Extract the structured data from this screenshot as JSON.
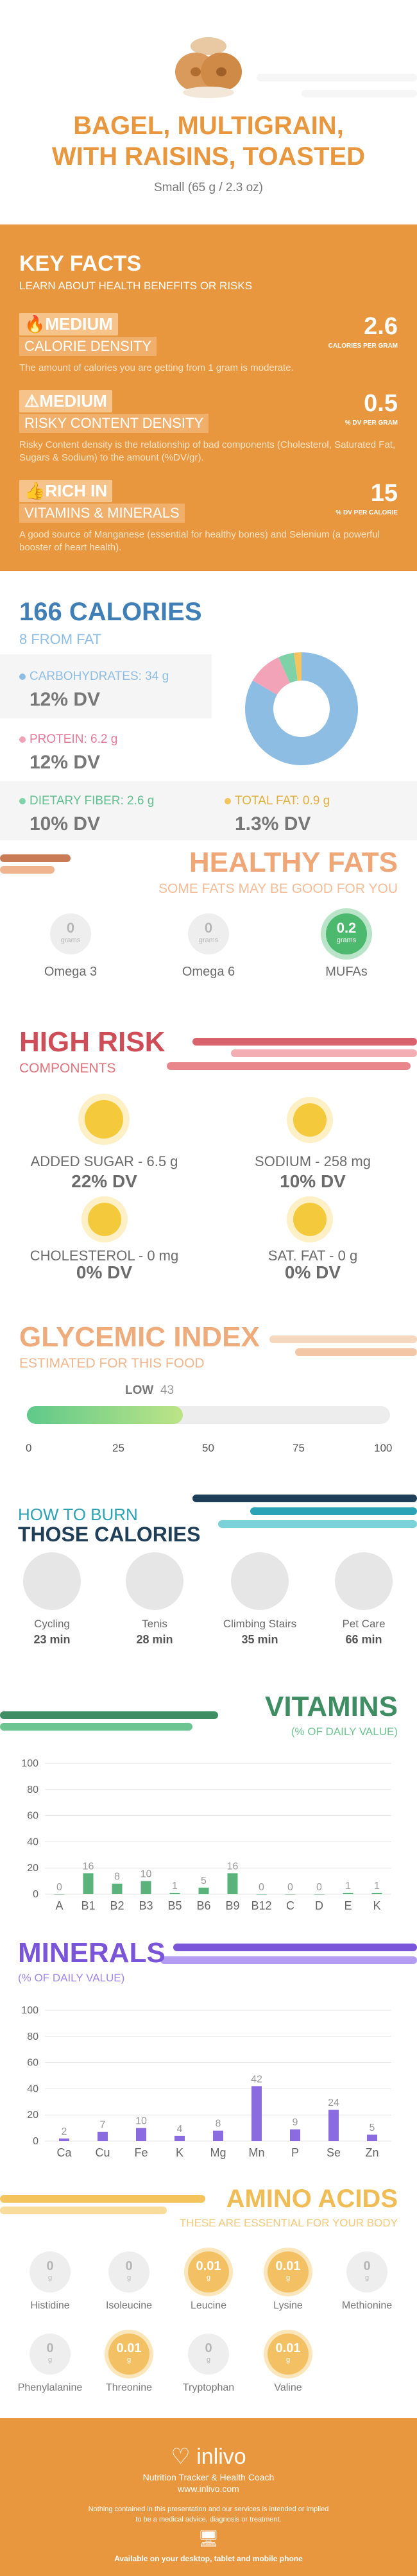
{
  "header": {
    "title_line1": "BAGEL, MULTIGRAIN,",
    "title_line2": "WITH RAISINS, TOASTED",
    "serving": "Small (65 g / 2.3 oz)"
  },
  "key_facts": {
    "title": "KEY FACTS",
    "subtitle": "LEARN ABOUT HEALTH BENEFITS OR RISKS",
    "items": [
      {
        "level": "MEDIUM",
        "label": "CALORIE DENSITY",
        "value": "2.6",
        "unit": "CALORIES PER GRAM",
        "desc": "The amount of calories you are getting from 1 gram is moderate."
      },
      {
        "level": "MEDIUM",
        "label": "RISKY CONTENT DENSITY",
        "value": "0.5",
        "unit": "% DV PER GRAM",
        "desc": "Risky Content density is the relationship of bad components (Cholesterol, Saturated Fat, Sugars & Sodium) to the amount (%DV/gr)."
      },
      {
        "level": "RICH IN",
        "label": "VITAMINS & MINERALS",
        "value": "15",
        "unit": "% DV PER CALORIE",
        "desc": "A good source of Manganese (essential for healthy bones) and Selenium (a powerful booster of heart health)."
      }
    ]
  },
  "calories": {
    "title": "166 CALORIES",
    "from_fat": "8 FROM FAT",
    "carbs": {
      "label": "CARBOHYDRATES: 34 g",
      "dv": "12% DV",
      "color": "#8dbde3"
    },
    "protein": {
      "label": "PROTEIN: 6.2 g",
      "dv": "12% DV",
      "color": "#f2a3b8"
    },
    "fiber": {
      "label": "DIETARY FIBER: 2.6 g",
      "dv": "10% DV",
      "color": "#7fd1a7"
    },
    "fat": {
      "label": "TOTAL FAT: 0.9 g",
      "dv": "1.3% DV",
      "color": "#f5c45e"
    }
  },
  "healthy_fats": {
    "title": "HEALTHY FATS",
    "subtitle": "SOME FATS MAY BE GOOD FOR YOU",
    "items": [
      {
        "value": "0",
        "unit": "grams",
        "label": "Omega 3"
      },
      {
        "value": "0",
        "unit": "grams",
        "label": "Omega 6"
      },
      {
        "value": "0.2",
        "unit": "grams",
        "label": "MUFAs"
      }
    ]
  },
  "high_risk": {
    "title": "HIGH RISK",
    "subtitle": "COMPONENTS",
    "items": [
      {
        "label": "ADDED SUGAR - 6.5 g",
        "dv": "22% DV"
      },
      {
        "label": "SODIUM - 258 mg",
        "dv": "10% DV"
      },
      {
        "label": "CHOLESTEROL - 0 mg",
        "dv": "0% DV"
      },
      {
        "label": "SAT. FAT - 0 g",
        "dv": "0% DV"
      }
    ]
  },
  "glycemic": {
    "title": "GLYCEMIC INDEX",
    "subtitle": "ESTIMATED FOR THIS FOOD",
    "level": "LOW",
    "value": 43,
    "value_text": "43",
    "ticks": [
      "0",
      "25",
      "50",
      "75",
      "100"
    ]
  },
  "burn": {
    "title1": "HOW TO BURN",
    "title2": "THOSE CALORIES",
    "items": [
      {
        "label": "Cycling",
        "time": "23 min"
      },
      {
        "label": "Tenis",
        "time": "28 min"
      },
      {
        "label": "Climbing Stairs",
        "time": "35 min"
      },
      {
        "label": "Pet Care",
        "time": "66 min"
      }
    ]
  },
  "vitamins": {
    "title": "VITAMINS",
    "subtitle": "(% OF DAILY VALUE)",
    "color": "#5bb37c"
  },
  "minerals": {
    "title": "MINERALS",
    "subtitle": "(% OF DAILY VALUE)",
    "color": "#8a6ce0"
  },
  "chart_data": [
    {
      "type": "bar",
      "categories": [
        "A",
        "B1",
        "B2",
        "B3",
        "B5",
        "B6",
        "B9",
        "B12",
        "C",
        "D",
        "E",
        "K"
      ],
      "values": [
        0,
        16,
        8,
        10,
        1,
        5,
        16,
        0,
        0,
        0,
        1,
        1
      ],
      "value_labels": [
        "0",
        "16",
        "8",
        "10",
        "1",
        "5",
        "16",
        "0",
        "0",
        "0",
        "1",
        "1"
      ],
      "yticks": [
        "100",
        "80",
        "60",
        "40",
        "20",
        "0"
      ],
      "ylim": [
        0,
        100
      ]
    },
    {
      "type": "bar",
      "categories": [
        "Ca",
        "Cu",
        "Fe",
        "K",
        "Mg",
        "Mn",
        "P",
        "Se",
        "Zn"
      ],
      "values": [
        2,
        7,
        10,
        4,
        8,
        42,
        9,
        24,
        5
      ],
      "value_labels": [
        "2",
        "7",
        "10",
        "4",
        "8",
        "42",
        "9",
        "24",
        "5"
      ],
      "yticks": [
        "100",
        "80",
        "60",
        "40",
        "20",
        "0"
      ],
      "ylim": [
        0,
        100
      ]
    }
  ],
  "amino": {
    "title": "AMINO ACIDS",
    "subtitle": "THESE ARE ESSENTIAL FOR YOUR BODY",
    "items": [
      {
        "value": "0",
        "unit": "g",
        "label": "Histidine"
      },
      {
        "value": "0",
        "unit": "g",
        "label": "Isoleucine"
      },
      {
        "value": "0.01",
        "unit": "g",
        "label": "Leucine"
      },
      {
        "value": "0.01",
        "unit": "g",
        "label": "Lysine"
      },
      {
        "value": "0",
        "unit": "g",
        "label": "Methionine"
      },
      {
        "value": "0",
        "unit": "g",
        "label": "Phenylalanine"
      },
      {
        "value": "0.01",
        "unit": "g",
        "label": "Threonine"
      },
      {
        "value": "0",
        "unit": "g",
        "label": "Tryptophan"
      },
      {
        "value": "0.01",
        "unit": "g",
        "label": "Valine"
      }
    ]
  },
  "footer": {
    "brand": "inlivo",
    "tagline": "Nutrition Tracker & Health Coach",
    "url": "www.inlivo.com",
    "disclaimer1": "Nothing contained in this presentation and our services is intended or implied",
    "disclaimer2": "to be a medical advice, diagnosis or treatment.",
    "available": "Available on your desktop, tablet and mobile phone"
  }
}
